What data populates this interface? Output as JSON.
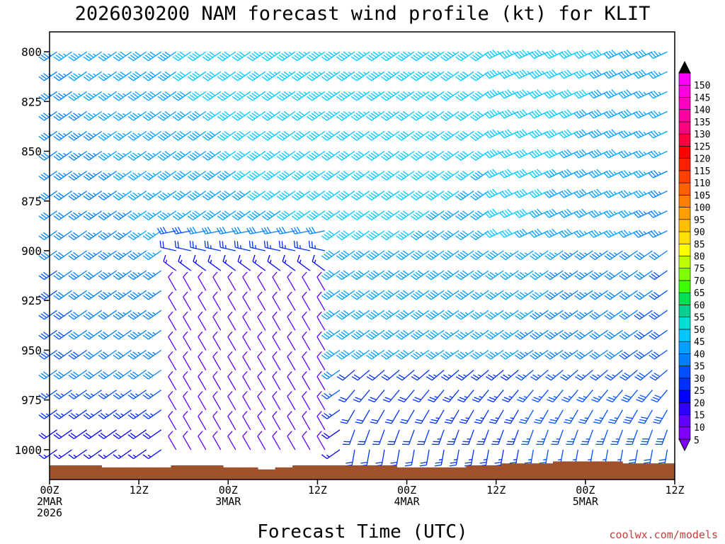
{
  "chart_data": {
    "type": "wind-barb-time-height",
    "title": "2026030200 NAM forecast wind profile (kt) for KLIT",
    "xlabel": "Forecast Time (UTC)",
    "ylabel": "",
    "credit": "coolwx.com/models",
    "units": "kt",
    "x_range_hours": [
      0,
      84
    ],
    "y_range_hpa": [
      790,
      1015
    ],
    "y_ticks": [
      {
        "value": 800,
        "label": "800"
      },
      {
        "value": 825,
        "label": "825"
      },
      {
        "value": 850,
        "label": "850"
      },
      {
        "value": 875,
        "label": "875"
      },
      {
        "value": 900,
        "label": "900"
      },
      {
        "value": 925,
        "label": "925"
      },
      {
        "value": 950,
        "label": "950"
      },
      {
        "value": 975,
        "label": "975"
      },
      {
        "value": 1000,
        "label": "1000"
      }
    ],
    "x_ticks": [
      {
        "hour": 0,
        "lines": [
          "00Z",
          "2MAR",
          "2026"
        ]
      },
      {
        "hour": 12,
        "lines": [
          "12Z"
        ]
      },
      {
        "hour": 24,
        "lines": [
          "00Z",
          "3MAR"
        ]
      },
      {
        "hour": 36,
        "lines": [
          "12Z"
        ]
      },
      {
        "hour": 48,
        "lines": [
          "00Z",
          "4MAR"
        ]
      },
      {
        "hour": 60,
        "lines": [
          "12Z"
        ]
      },
      {
        "hour": 72,
        "lines": [
          "00Z",
          "5MAR"
        ]
      },
      {
        "hour": 84,
        "lines": [
          "12Z"
        ]
      }
    ],
    "colorbar": {
      "levels": [
        "5",
        "10",
        "15",
        "20",
        "25",
        "30",
        "35",
        "40",
        "45",
        "50",
        "55",
        "60",
        "65",
        "70",
        "75",
        "80",
        "85",
        "90",
        "95",
        "100",
        "105",
        "110",
        "115",
        "120",
        "125",
        "130",
        "135",
        "140",
        "145",
        "150"
      ],
      "colors": [
        "#8000ff",
        "#6000ff",
        "#3000ff",
        "#0000ff",
        "#0030ff",
        "#0050ff",
        "#0080ff",
        "#00a0ff",
        "#00c8ff",
        "#00e0d0",
        "#00d090",
        "#00e050",
        "#40ff00",
        "#80ff00",
        "#c0ff00",
        "#ffff00",
        "#ffe000",
        "#ffc000",
        "#ffa000",
        "#ff8000",
        "#ff6000",
        "#ff4000",
        "#ff2000",
        "#ff0000",
        "#ff0040",
        "#ff0080",
        "#ff00a0",
        "#ff00c0",
        "#ff00e0",
        "#ff00ff"
      ]
    },
    "surface_pressure_hpa": [
      1008,
      1008,
      1008,
      1009,
      1009,
      1009,
      1009,
      1008,
      1008,
      1008,
      1009,
      1009,
      1010,
      1009,
      1008,
      1008,
      1008,
      1008,
      1008,
      1008,
      1009,
      1009,
      1009,
      1009,
      1008,
      1008,
      1007,
      1007,
      1007,
      1006,
      1006,
      1006,
      1006,
      1007,
      1007,
      1007
    ],
    "barb_columns_hours": [
      1,
      3,
      5,
      7,
      9,
      11,
      13,
      15,
      17,
      19,
      21,
      23,
      25,
      27,
      29,
      31,
      33,
      35,
      37,
      39,
      41,
      43,
      45,
      47,
      49,
      51,
      53,
      55,
      57,
      59,
      61,
      63,
      65,
      67,
      69,
      71,
      73,
      75,
      77,
      79,
      81,
      83
    ],
    "barb_levels_hpa": [
      800,
      810,
      820,
      830,
      840,
      850,
      860,
      870,
      880,
      890,
      900,
      910,
      920,
      930,
      940,
      950,
      960,
      970,
      980,
      990,
      1000
    ],
    "wind_model": "Southwesterly 30–45 kt aloft and mid-levels; weak 5–15 kt northwesterly/northerly shift through low levels after ~18Z 2MAR–12Z 3MAR; southerly 15–40 kt near surface thereafter"
  }
}
